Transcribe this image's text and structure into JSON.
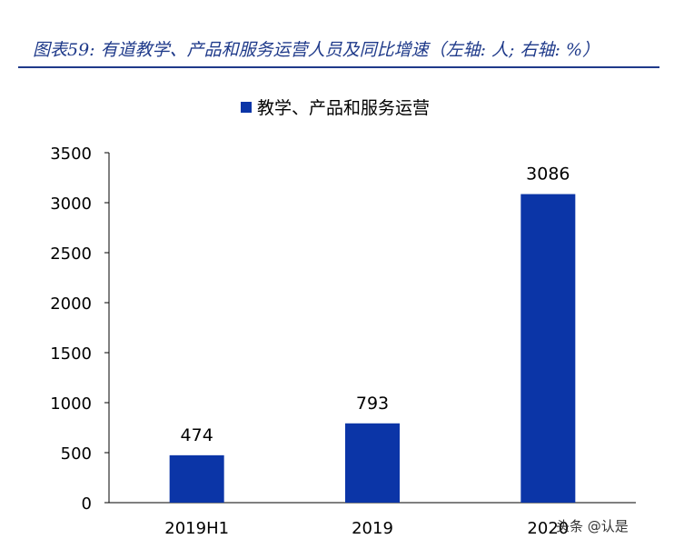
{
  "header": {
    "title": "图表59: 有道教学、产品和服务运营人员及同比增速（左轴: 人; 右轴: %）"
  },
  "watermark": "头条 @认是",
  "colors": {
    "bar": "#0b35a7",
    "title": "#1f3a8a",
    "axis": "#000000"
  },
  "chart_data": {
    "type": "bar",
    "categories": [
      "2019H1",
      "2019",
      "2020"
    ],
    "series": [
      {
        "name": "教学、产品和服务运营",
        "values": [
          474,
          793,
          3086
        ]
      }
    ],
    "data_labels": [
      "474",
      "793",
      "3086"
    ],
    "yticks": [
      "0",
      "500",
      "1000",
      "1500",
      "2000",
      "2500",
      "3000",
      "3500"
    ],
    "ylim": [
      0,
      3500
    ],
    "legend_position": "top-center",
    "grid": false
  }
}
